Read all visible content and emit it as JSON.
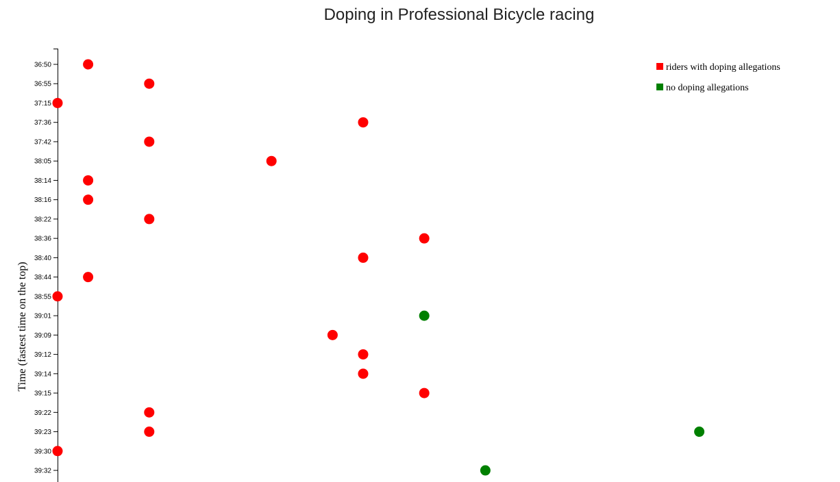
{
  "chart_data": {
    "type": "scatter",
    "title": "Doping in Professional Bicycle racing",
    "ylabel": "Time (fastest time on the top)",
    "y_axis": "categorical, fastest time at top",
    "y_categories": [
      "36:50",
      "36:55",
      "37:15",
      "37:36",
      "37:42",
      "38:05",
      "38:14",
      "38:16",
      "38:22",
      "38:36",
      "38:40",
      "38:44",
      "38:55",
      "39:01",
      "39:09",
      "39:12",
      "39:14",
      "39:15",
      "39:22",
      "39:23",
      "39:30",
      "39:32"
    ],
    "grid": false,
    "legend_position": "top-right",
    "colors": {
      "doping": "#ff0000",
      "clean": "#008000"
    },
    "legend": [
      {
        "key": "doping",
        "label": "riders with doping allegations"
      },
      {
        "key": "clean",
        "label": "no doping allegations"
      }
    ],
    "points": [
      {
        "x": 1,
        "y": "36:50",
        "group": "doping"
      },
      {
        "x": 3,
        "y": "36:55",
        "group": "doping"
      },
      {
        "x": 0,
        "y": "37:15",
        "group": "doping"
      },
      {
        "x": 10,
        "y": "37:36",
        "group": "doping"
      },
      {
        "x": 3,
        "y": "37:42",
        "group": "doping"
      },
      {
        "x": 7,
        "y": "38:05",
        "group": "doping"
      },
      {
        "x": 1,
        "y": "38:14",
        "group": "doping"
      },
      {
        "x": 1,
        "y": "38:16",
        "group": "doping"
      },
      {
        "x": 3,
        "y": "38:22",
        "group": "doping"
      },
      {
        "x": 12,
        "y": "38:36",
        "group": "doping"
      },
      {
        "x": 10,
        "y": "38:40",
        "group": "doping"
      },
      {
        "x": 1,
        "y": "38:44",
        "group": "doping"
      },
      {
        "x": 0,
        "y": "38:55",
        "group": "doping"
      },
      {
        "x": 12,
        "y": "39:01",
        "group": "clean"
      },
      {
        "x": 9,
        "y": "39:09",
        "group": "doping"
      },
      {
        "x": 10,
        "y": "39:12",
        "group": "doping"
      },
      {
        "x": 10,
        "y": "39:14",
        "group": "doping"
      },
      {
        "x": 12,
        "y": "39:15",
        "group": "doping"
      },
      {
        "x": 3,
        "y": "39:22",
        "group": "doping"
      },
      {
        "x": 3,
        "y": "39:23",
        "group": "doping"
      },
      {
        "x": 21,
        "y": "39:23",
        "group": "clean"
      },
      {
        "x": 0,
        "y": "39:30",
        "group": "doping"
      },
      {
        "x": 14,
        "y": "39:32",
        "group": "clean"
      }
    ]
  }
}
